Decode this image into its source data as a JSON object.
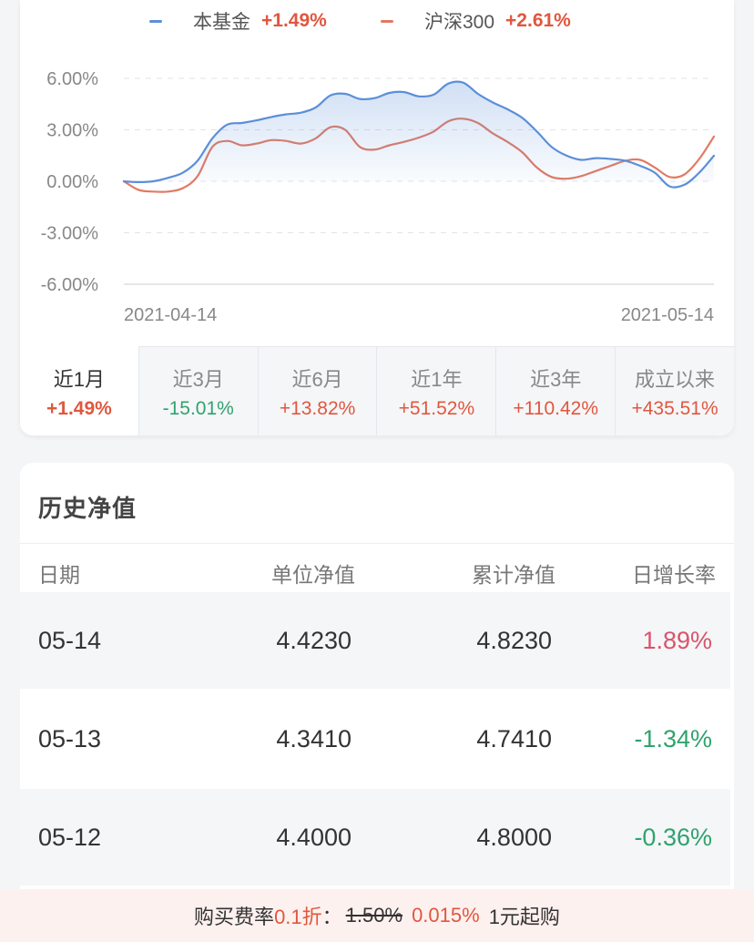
{
  "legend": [
    {
      "name": "本基金",
      "value": "+1.49%",
      "color": "#5b8fd8"
    },
    {
      "name": "沪深300",
      "value": "+2.61%",
      "color": "#e27a63"
    }
  ],
  "chart_data": {
    "type": "line",
    "x_start": "2021-04-14",
    "x_end": "2021-05-14",
    "x_tick_labels": [
      "2021-04-14",
      "2021-05-14"
    ],
    "y_tick_labels": [
      "6.00%",
      "3.00%",
      "0.00%",
      "-3.00%",
      "-6.00%"
    ],
    "ylim": [
      -6,
      6
    ],
    "grid": true,
    "series": [
      {
        "name": "本基金",
        "color": "#5b8fd8",
        "fill": true,
        "values": [
          0.0,
          -0.05,
          0.0,
          0.2,
          0.5,
          1.2,
          2.5,
          3.3,
          3.4,
          3.55,
          3.75,
          3.9,
          4.0,
          4.3,
          5.0,
          5.1,
          4.8,
          4.85,
          5.15,
          5.2,
          4.95,
          5.05,
          5.7,
          5.75,
          5.1,
          4.6,
          4.2,
          3.7,
          2.9,
          2.0,
          1.5,
          1.25,
          1.35,
          1.3,
          1.2,
          0.9,
          0.5,
          -0.3,
          -0.2,
          0.5,
          1.49
        ]
      },
      {
        "name": "沪深300",
        "color": "#e27a63",
        "fill": false,
        "values": [
          0.0,
          -0.5,
          -0.6,
          -0.6,
          -0.4,
          0.3,
          2.0,
          2.35,
          2.1,
          2.2,
          2.4,
          2.35,
          2.2,
          2.5,
          3.15,
          3.0,
          2.0,
          1.85,
          2.1,
          2.3,
          2.55,
          2.9,
          3.5,
          3.65,
          3.4,
          2.8,
          2.3,
          1.7,
          0.8,
          0.25,
          0.15,
          0.3,
          0.6,
          0.9,
          1.2,
          1.25,
          0.8,
          0.25,
          0.4,
          1.3,
          2.61
        ]
      }
    ]
  },
  "periods": [
    {
      "label": "近1月",
      "value": "+1.49%",
      "trend": "up",
      "active": true
    },
    {
      "label": "近3月",
      "value": "-15.01%",
      "trend": "down",
      "active": false
    },
    {
      "label": "近6月",
      "value": "+13.82%",
      "trend": "up",
      "active": false
    },
    {
      "label": "近1年",
      "value": "+51.52%",
      "trend": "up",
      "active": false
    },
    {
      "label": "近3年",
      "value": "+110.42%",
      "trend": "up",
      "active": false
    },
    {
      "label": "成立以来",
      "value": "+435.51%",
      "trend": "up",
      "active": false
    }
  ],
  "history": {
    "title": "历史净值",
    "headers": {
      "date": "日期",
      "unit_nav": "单位净值",
      "acc_nav": "累计净值",
      "daily_rate": "日增长率"
    },
    "rows": [
      {
        "date": "05-14",
        "unit_nav": "4.4230",
        "acc_nav": "4.8230",
        "rate": "1.89%",
        "trend": "up"
      },
      {
        "date": "05-13",
        "unit_nav": "4.3410",
        "acc_nav": "4.7410",
        "rate": "-1.34%",
        "trend": "down"
      },
      {
        "date": "05-12",
        "unit_nav": "4.4000",
        "acc_nav": "4.8000",
        "rate": "-0.36%",
        "trend": "down"
      }
    ]
  },
  "footer": {
    "prefix": "购买费率",
    "discount": "0.1折",
    "colon": "：",
    "original_rate": "1.50%",
    "new_rate": "0.015%",
    "minimum": "1元起购"
  }
}
